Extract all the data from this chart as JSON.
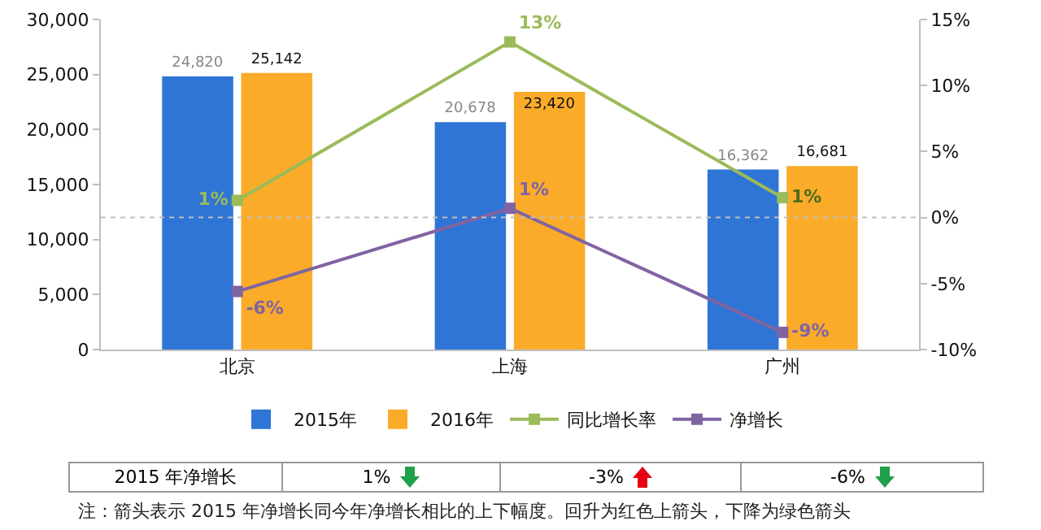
{
  "chart_data": {
    "type": "bar",
    "categories": [
      "北京",
      "上海",
      "广州"
    ],
    "series": [
      {
        "name": "2015年",
        "color": "#2e75d6",
        "values": [
          24820,
          20678,
          16362
        ],
        "value_labels": [
          "24,820",
          "20,678",
          "16,362"
        ]
      },
      {
        "name": "2016年",
        "color": "#fbab2a",
        "values": [
          25142,
          23420,
          16681
        ],
        "value_labels": [
          "25,142",
          "23,420",
          "16,681"
        ]
      },
      {
        "name": "同比增长率",
        "type": "line",
        "axis": "y2",
        "color": "#9bbb59",
        "values": [
          1.3,
          13.3,
          1.5
        ],
        "value_labels": [
          "1%",
          "13%",
          "1%"
        ]
      },
      {
        "name": "净增长",
        "type": "line",
        "axis": "y2",
        "color": "#8064a2",
        "values": [
          -5.6,
          0.7,
          -8.7
        ],
        "value_labels": [
          "-6%",
          "1%",
          "-9%"
        ]
      }
    ],
    "ylim": [
      0,
      30000
    ],
    "yticks": [
      {
        "value": 0,
        "label": "0"
      },
      {
        "value": 5000,
        "label": "5,000"
      },
      {
        "value": 10000,
        "label": "10,000"
      },
      {
        "value": 15000,
        "label": "15,000"
      },
      {
        "value": 20000,
        "label": "20,000"
      },
      {
        "value": 25000,
        "label": "25,000"
      },
      {
        "value": 30000,
        "label": "30,000"
      }
    ],
    "y2lim": [
      -10,
      15
    ],
    "y2ticks": [
      {
        "value": -10,
        "label": "-10%"
      },
      {
        "value": -5,
        "label": "-5%"
      },
      {
        "value": 0,
        "label": "0%"
      },
      {
        "value": 5,
        "label": "5%"
      },
      {
        "value": 10,
        "label": "10%"
      },
      {
        "value": 15,
        "label": "15%"
      }
    ],
    "ref_lines": [
      {
        "axis": "y2",
        "value": 0,
        "color": "#bfbfbf",
        "line_style": "dotted"
      }
    ],
    "marker": "square",
    "line_style": "solid",
    "grid": false,
    "legend": "bottom",
    "annotations": [
      "2015 年净增长",
      "1%",
      "-3%",
      "-6%",
      "注：箭头表示 2015 年净增长同今年净增长相比的上下幅度。回升为红色上箭头，下降为绿色箭头"
    ]
  }
}
